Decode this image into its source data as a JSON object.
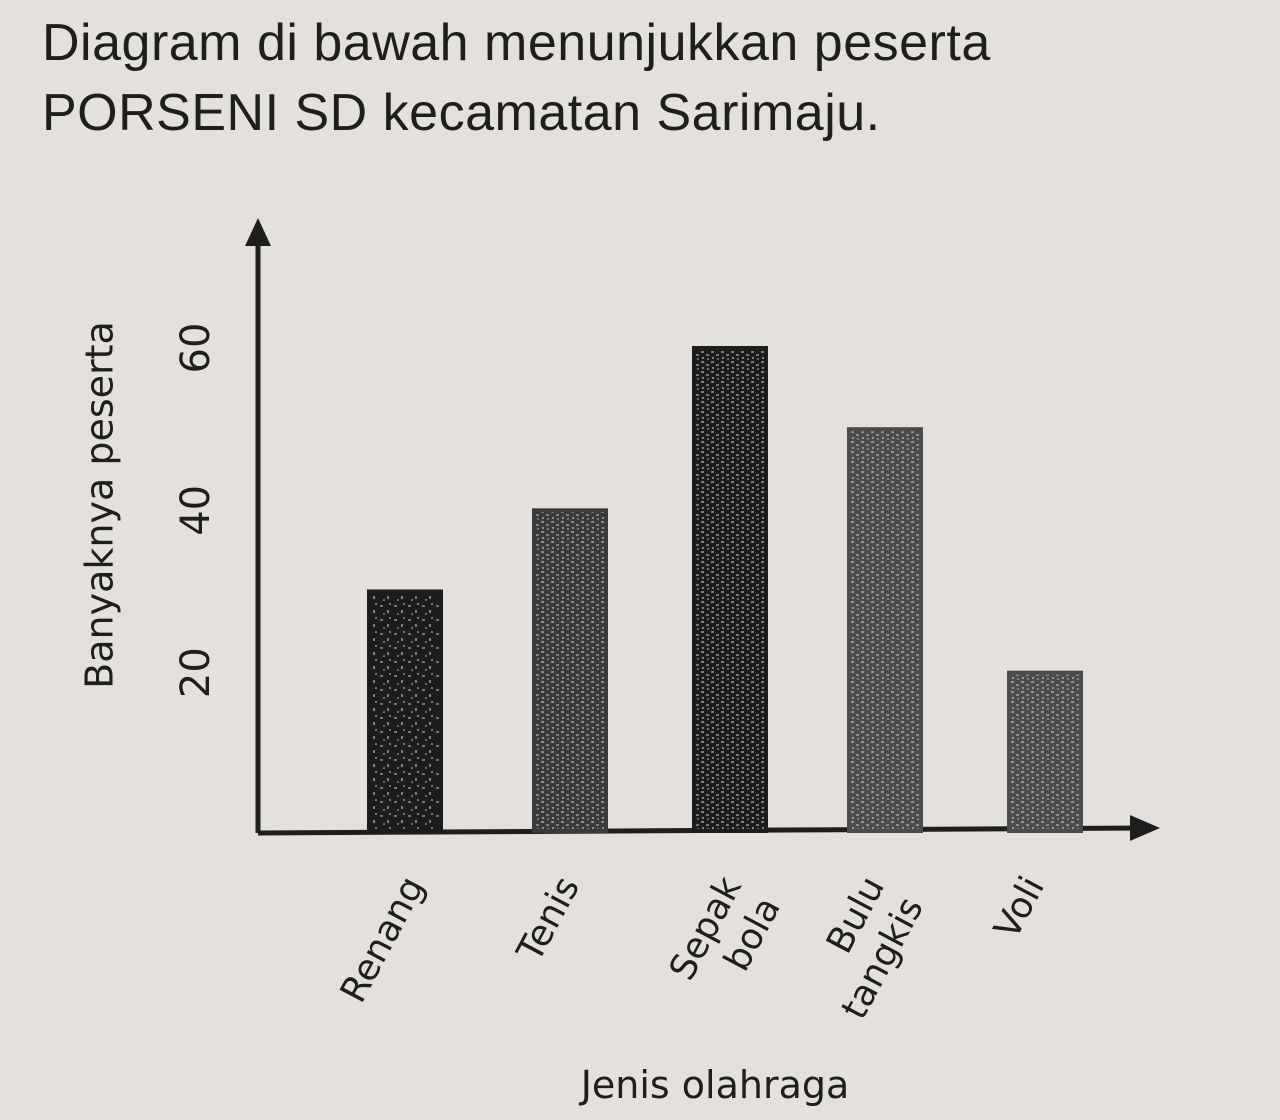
{
  "question": {
    "line1": "Diagram di bawah menunjukkan peserta",
    "line2": "PORSENI SD kecamatan Sarimaju."
  },
  "chart_data": {
    "type": "bar",
    "title": "",
    "xlabel": "Jenis olahraga",
    "ylabel": "Banyaknya peserta",
    "categories": [
      [
        "Renang"
      ],
      [
        "Tenis"
      ],
      [
        "Sepak",
        "bola"
      ],
      [
        "Bulu",
        "tangkis"
      ],
      [
        "Voli"
      ]
    ],
    "values": [
      30,
      40,
      60,
      50,
      20
    ],
    "yticks": [
      20,
      40,
      60
    ],
    "ylim": [
      0,
      74
    ],
    "grid": false,
    "legend": "none",
    "colors": {
      "bar_dark": "#1c1c1c",
      "bar_mid": "#3a3a3a",
      "bar_light": "#4b4b4b",
      "axis": "#1e1e1e"
    }
  }
}
